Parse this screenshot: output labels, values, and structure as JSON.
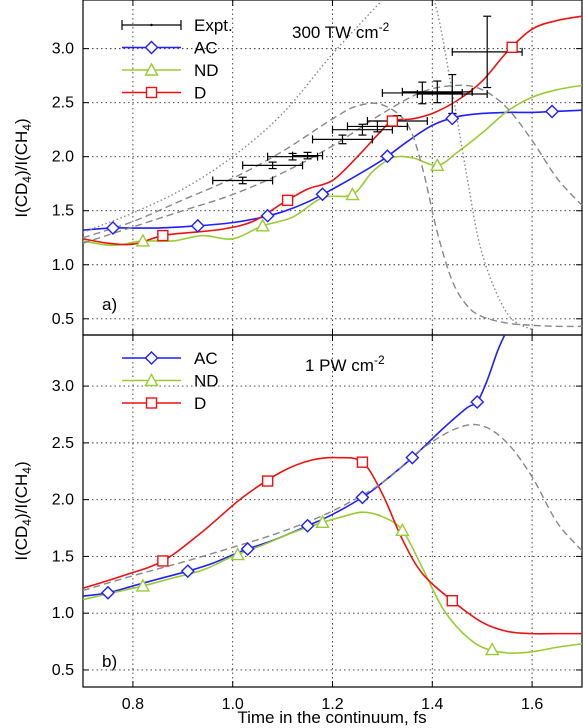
{
  "figure": {
    "xlabel": "Time in the continuum, fs",
    "ylabel_main": "I(CD",
    "ylabel_sub1": "4",
    "ylabel_mid": ")/I(CH",
    "ylabel_sub2": "4",
    "ylabel_end": ")",
    "colors": {
      "AC": "#1f1fff",
      "ND": "#99cc33",
      "D": "#ee1111",
      "Expt": "#000000",
      "theory_dashed": "#888888",
      "theory_dotted": "#888888",
      "grid": "#333333"
    }
  },
  "chart_data": [
    {
      "type": "line",
      "panel": "a)",
      "annotation": "300 TW cm",
      "annotation_sup": "-2",
      "xlim": [
        0.7,
        1.7
      ],
      "ylim": [
        0.35,
        3.45
      ],
      "xticks": [
        "0.8",
        "1.0",
        "1.2",
        "1.4",
        "1.6"
      ],
      "xtick_values": [
        0.8,
        1.0,
        1.2,
        1.4,
        1.6
      ],
      "yticks": [
        "0.5",
        "1.0",
        "1.5",
        "2.0",
        "2.5",
        "3.0"
      ],
      "ytick_values": [
        0.5,
        1.0,
        1.5,
        2.0,
        2.5,
        3.0
      ],
      "grid": true,
      "legend": [
        "Expt.",
        "AC",
        "ND",
        "D"
      ],
      "legend_position": "top-left",
      "series": [
        {
          "name": "AC",
          "color": "#1f1fff",
          "marker": "diamond",
          "x": [
            0.7,
            0.76,
            0.85,
            0.93,
            1.0,
            1.05,
            1.1,
            1.15,
            1.2,
            1.25,
            1.3,
            1.35,
            1.4,
            1.45,
            1.5,
            1.55,
            1.6,
            1.65,
            1.7
          ],
          "y": [
            1.32,
            1.34,
            1.34,
            1.36,
            1.39,
            1.43,
            1.49,
            1.58,
            1.7,
            1.83,
            1.97,
            2.14,
            2.29,
            2.37,
            2.4,
            2.41,
            2.41,
            2.42,
            2.43
          ],
          "markers_x": [
            0.76,
            0.93,
            1.07,
            1.18,
            1.31,
            1.44,
            1.64
          ]
        },
        {
          "name": "ND",
          "color": "#99cc33",
          "marker": "triangle",
          "x": [
            0.7,
            0.76,
            0.82,
            0.88,
            0.94,
            1.0,
            1.06,
            1.12,
            1.18,
            1.24,
            1.28,
            1.32,
            1.36,
            1.41,
            1.45,
            1.5,
            1.55,
            1.6,
            1.65,
            1.7
          ],
          "y": [
            1.22,
            1.18,
            1.22,
            1.22,
            1.27,
            1.24,
            1.36,
            1.44,
            1.62,
            1.65,
            1.86,
            1.99,
            1.99,
            1.92,
            2.04,
            2.22,
            2.42,
            2.55,
            2.62,
            2.66
          ],
          "markers_x": [
            0.82,
            1.06,
            1.24,
            1.41
          ]
        },
        {
          "name": "D",
          "color": "#ee1111",
          "marker": "square",
          "x": [
            0.7,
            0.75,
            0.8,
            0.86,
            0.92,
            0.98,
            1.04,
            1.1,
            1.15,
            1.2,
            1.25,
            1.29,
            1.32,
            1.36,
            1.4,
            1.45,
            1.5,
            1.55,
            1.6,
            1.65,
            1.7
          ],
          "y": [
            1.24,
            1.2,
            1.19,
            1.27,
            1.3,
            1.33,
            1.4,
            1.57,
            1.7,
            1.78,
            2.0,
            2.2,
            2.33,
            2.35,
            2.4,
            2.52,
            2.7,
            2.97,
            3.18,
            3.26,
            3.3
          ],
          "markers_x": [
            0.86,
            1.11,
            1.32,
            1.56
          ]
        },
        {
          "name": "",
          "color": "#888888",
          "style": "dashed",
          "x": [
            0.7,
            0.8,
            0.9,
            1.0,
            1.1,
            1.2,
            1.25,
            1.3,
            1.35,
            1.38,
            1.41,
            1.44,
            1.47,
            1.5,
            1.55,
            1.6,
            1.65,
            1.7
          ],
          "y": [
            1.25,
            1.4,
            1.6,
            1.8,
            2.05,
            2.35,
            2.47,
            2.48,
            2.3,
            1.9,
            1.3,
            0.85,
            0.62,
            0.52,
            0.46,
            0.44,
            0.43,
            0.43
          ]
        },
        {
          "name": "",
          "color": "#888888",
          "style": "dashed",
          "x": [
            0.7,
            0.8,
            0.9,
            1.0,
            1.1,
            1.2,
            1.3,
            1.38,
            1.45,
            1.5,
            1.55,
            1.6,
            1.65,
            1.7
          ],
          "y": [
            1.2,
            1.35,
            1.5,
            1.65,
            1.85,
            2.1,
            2.4,
            2.6,
            2.66,
            2.62,
            2.45,
            2.15,
            1.8,
            1.55
          ]
        },
        {
          "name": "",
          "color": "#888888",
          "style": "dotted",
          "x": [
            0.7,
            0.8,
            0.9,
            1.0,
            1.1,
            1.2,
            1.3,
            1.35,
            1.4,
            1.44,
            1.47,
            1.5,
            1.55,
            1.6
          ],
          "y": [
            1.3,
            1.48,
            1.7,
            2.0,
            2.4,
            2.95,
            3.45,
            3.7,
            3.5,
            2.6,
            1.8,
            1.1,
            0.55,
            0.4
          ]
        }
      ],
      "errorbar_series": {
        "name": "Expt.",
        "color": "#000000",
        "points": [
          {
            "x": 1.02,
            "y": 1.78,
            "xerr": 0.06,
            "yerr": 0.03
          },
          {
            "x": 1.08,
            "y": 1.92,
            "xerr": 0.06,
            "yerr": 0.03
          },
          {
            "x": 1.12,
            "y": 2.0,
            "xerr": 0.05,
            "yerr": 0.03
          },
          {
            "x": 1.15,
            "y": 2.01,
            "xerr": 0.03,
            "yerr": 0.03
          },
          {
            "x": 1.22,
            "y": 2.16,
            "xerr": 0.06,
            "yerr": 0.04
          },
          {
            "x": 1.26,
            "y": 2.25,
            "xerr": 0.06,
            "yerr": 0.05
          },
          {
            "x": 1.29,
            "y": 2.28,
            "xerr": 0.06,
            "yerr": 0.05
          },
          {
            "x": 1.33,
            "y": 2.33,
            "xerr": 0.06,
            "yerr": 0.05
          },
          {
            "x": 1.38,
            "y": 2.59,
            "xerr": 0.08,
            "yerr": 0.1
          },
          {
            "x": 1.41,
            "y": 2.6,
            "xerr": 0.07,
            "yerr": 0.1
          },
          {
            "x": 1.44,
            "y": 2.58,
            "xerr": 0.07,
            "yerr": 0.18
          },
          {
            "x": 1.51,
            "y": 2.97,
            "xerr": 0.07,
            "yerr": 0.33
          }
        ]
      }
    },
    {
      "type": "line",
      "panel": "b)",
      "annotation": "1 PW cm",
      "annotation_sup": "-2",
      "xlim": [
        0.7,
        1.7
      ],
      "ylim": [
        0.35,
        3.45
      ],
      "xticks": [
        "0.8",
        "1.0",
        "1.2",
        "1.4",
        "1.6"
      ],
      "xtick_values": [
        0.8,
        1.0,
        1.2,
        1.4,
        1.6
      ],
      "yticks": [
        "0.5",
        "1.0",
        "1.5",
        "2.0",
        "2.5",
        "3.0"
      ],
      "ytick_values": [
        0.5,
        1.0,
        1.5,
        2.0,
        2.5,
        3.0
      ],
      "grid": true,
      "legend": [
        "AC",
        "ND",
        "D"
      ],
      "legend_position": "top-left",
      "series": [
        {
          "name": "AC",
          "color": "#1f1fff",
          "marker": "diamond",
          "x": [
            0.7,
            0.75,
            0.8,
            0.85,
            0.91,
            0.96,
            1.02,
            1.08,
            1.15,
            1.2,
            1.26,
            1.3,
            1.36,
            1.42,
            1.47,
            1.49,
            1.51,
            1.53,
            1.545
          ],
          "y": [
            1.15,
            1.18,
            1.24,
            1.3,
            1.37,
            1.44,
            1.55,
            1.64,
            1.77,
            1.87,
            2.02,
            2.15,
            2.37,
            2.62,
            2.81,
            2.86,
            3.05,
            3.3,
            3.45
          ],
          "markers_x": [
            0.75,
            0.91,
            1.03,
            1.15,
            1.26,
            1.36,
            1.49
          ]
        },
        {
          "name": "ND",
          "color": "#99cc33",
          "marker": "triangle",
          "x": [
            0.7,
            0.76,
            0.82,
            0.88,
            0.94,
            1.0,
            1.06,
            1.12,
            1.18,
            1.22,
            1.26,
            1.3,
            1.34,
            1.38,
            1.42,
            1.46,
            1.5,
            1.55,
            1.6,
            1.65,
            1.7
          ],
          "y": [
            1.12,
            1.18,
            1.24,
            1.31,
            1.38,
            1.5,
            1.6,
            1.71,
            1.8,
            1.85,
            1.89,
            1.85,
            1.73,
            1.4,
            1.05,
            0.83,
            0.7,
            0.65,
            0.66,
            0.7,
            0.73
          ],
          "markers_x": [
            0.82,
            1.01,
            1.18,
            1.34,
            1.52
          ]
        },
        {
          "name": "D",
          "color": "#ee1111",
          "marker": "square",
          "x": [
            0.7,
            0.78,
            0.86,
            0.94,
            1.02,
            1.1,
            1.16,
            1.21,
            1.26,
            1.3,
            1.34,
            1.38,
            1.44,
            1.5,
            1.55,
            1.6,
            1.65,
            1.7
          ],
          "y": [
            1.22,
            1.33,
            1.46,
            1.72,
            2.02,
            2.25,
            2.35,
            2.37,
            2.33,
            2.05,
            1.65,
            1.35,
            1.11,
            0.92,
            0.84,
            0.82,
            0.82,
            0.82
          ],
          "markers_x": [
            0.86,
            1.07,
            1.26,
            1.44
          ]
        },
        {
          "name": "",
          "color": "#888888",
          "style": "dashed",
          "x": [
            0.7,
            0.8,
            0.9,
            1.0,
            1.1,
            1.2,
            1.3,
            1.38,
            1.45,
            1.5,
            1.55,
            1.6,
            1.65,
            1.7
          ],
          "y": [
            1.2,
            1.33,
            1.45,
            1.58,
            1.72,
            1.9,
            2.15,
            2.45,
            2.63,
            2.65,
            2.5,
            2.2,
            1.8,
            1.55
          ]
        }
      ]
    }
  ]
}
